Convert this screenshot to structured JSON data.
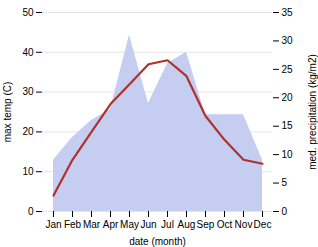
{
  "chart_data": {
    "type": "line",
    "xlabel": "date (month)",
    "ylabel": "max temp (C)",
    "y2label": "med. precipitation (kg/m2)",
    "categories": [
      "Jan",
      "Feb",
      "Mar",
      "Apr",
      "May",
      "Jun",
      "Jul",
      "Aug",
      "Sep",
      "Oct",
      "Nov",
      "Dec"
    ],
    "series": [
      {
        "type": "area",
        "axis": "y2",
        "color": "#c5cdf0",
        "values": [
          9,
          13,
          16,
          18,
          31,
          19,
          26,
          28,
          17,
          17,
          17,
          9
        ]
      },
      {
        "type": "line",
        "axis": "y",
        "color": "#b03030",
        "values": [
          4,
          13,
          20,
          27,
          32,
          37,
          38,
          34,
          24,
          18,
          13,
          12
        ]
      }
    ],
    "ylim": [
      0,
      50
    ],
    "yticks": [
      0,
      10,
      20,
      30,
      40,
      50
    ],
    "y2lim": [
      0,
      35
    ],
    "y2ticks": [
      0,
      5,
      10,
      15,
      20,
      25,
      30,
      35
    ],
    "grid": true
  }
}
